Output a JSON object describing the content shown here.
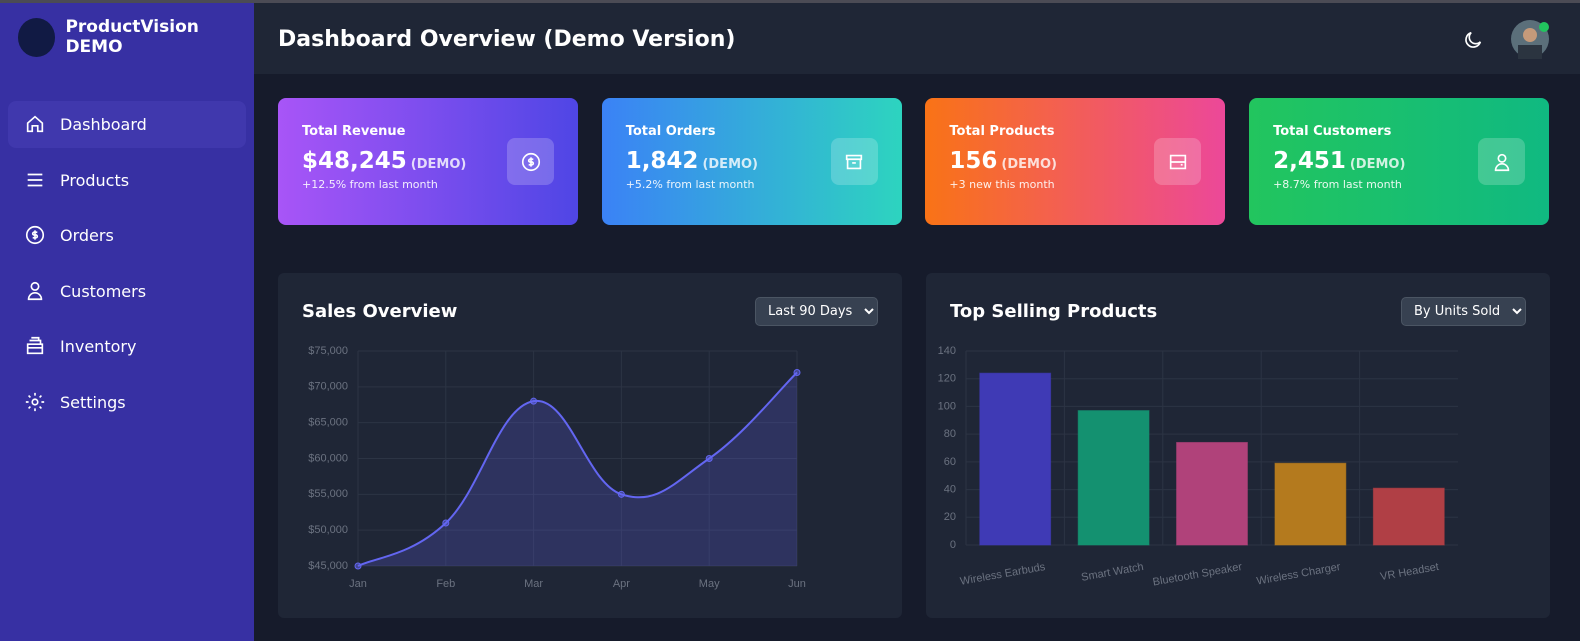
{
  "sidebar": {
    "brand": "ProductVision DEMO",
    "nav": [
      "Dashboard",
      "Products",
      "Orders",
      "Customers",
      "Inventory",
      "Settings"
    ]
  },
  "header": {
    "title": "Dashboard Overview (Demo Version)"
  },
  "cards": [
    {
      "label": "Total Revenue",
      "value": "$48,245",
      "tag": "(DEMO)",
      "note": "+12.5% from last month"
    },
    {
      "label": "Total Orders",
      "value": "1,842",
      "tag": "(DEMO)",
      "note": "+5.2% from last month"
    },
    {
      "label": "Total Products",
      "value": "156",
      "tag": "(DEMO)",
      "note": "+3 new this month"
    },
    {
      "label": "Total Customers",
      "value": "2,451",
      "tag": "(DEMO)",
      "note": "+8.7% from last month"
    }
  ],
  "chart_data": [
    {
      "type": "line",
      "title": "Sales Overview",
      "filter": "Last 90 Days",
      "categories": [
        "Jan",
        "Feb",
        "Mar",
        "Apr",
        "May",
        "Jun"
      ],
      "values": [
        45000,
        51000,
        68000,
        55000,
        60000,
        72000
      ],
      "color": "#6366f1",
      "fill": true,
      "grid": true,
      "ylim": [
        45000,
        75000
      ],
      "yticks": [
        {
          "value": 45000,
          "label": "$45,000"
        },
        {
          "value": 50000,
          "label": "$50,000"
        },
        {
          "value": 55000,
          "label": "$55,000"
        },
        {
          "value": 60000,
          "label": "$60,000"
        },
        {
          "value": 65000,
          "label": "$65,000"
        },
        {
          "value": 70000,
          "label": "$70,000"
        },
        {
          "value": 75000,
          "label": "$75,000"
        }
      ]
    },
    {
      "type": "bar",
      "title": "Top Selling Products",
      "filter": "By Units Sold",
      "categories": [
        "Wireless Earbuds",
        "Smart Watch",
        "Bluetooth Speaker",
        "Wireless Charger",
        "VR Headset"
      ],
      "values": [
        124,
        97,
        74,
        59,
        41
      ],
      "colors": [
        "#3f3ab5",
        "#149170",
        "#b0427a",
        "#b47a1e",
        "#b03f45"
      ],
      "grid": true,
      "ylim": [
        0,
        140
      ],
      "yticks": [
        0,
        20,
        40,
        60,
        80,
        100,
        120,
        140
      ]
    }
  ]
}
